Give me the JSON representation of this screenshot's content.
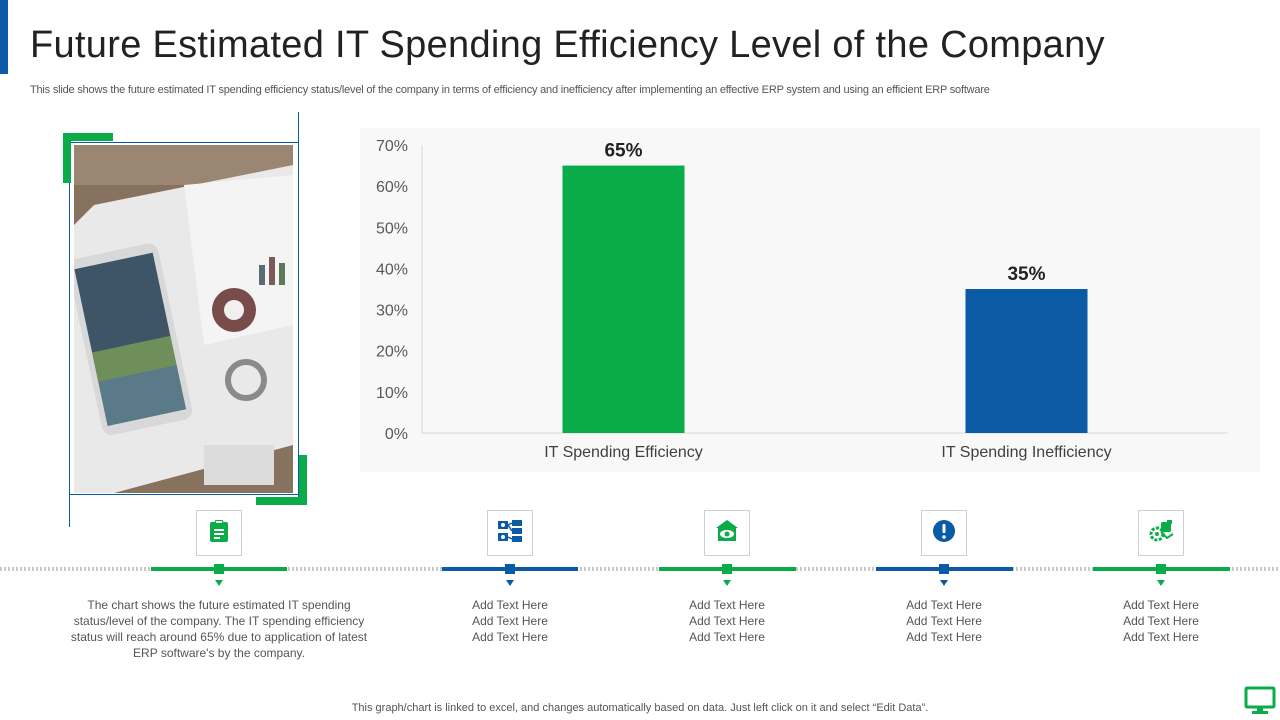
{
  "header": {
    "title": "Future Estimated IT Spending Efficiency Level of the Company",
    "subtitle": "This slide shows the future estimated IT spending efficiency status/level of the company in terms of efficiency and inefficiency after implementing an effective ERP system and using an efficient ERP software"
  },
  "colors": {
    "green": "#0aac4a",
    "blue": "#0a5aa5"
  },
  "chart_data": {
    "type": "bar",
    "categories": [
      "IT Spending Efficiency",
      "IT Spending Inefficiency"
    ],
    "values": [
      65,
      35
    ],
    "data_labels": [
      "65%",
      "35%"
    ],
    "bar_colors": [
      "#0aac4a",
      "#0a5aa5"
    ],
    "yticks": [
      0,
      10,
      20,
      30,
      40,
      50,
      60,
      70
    ],
    "ytick_labels": [
      "0%",
      "10%",
      "20%",
      "30%",
      "40%",
      "50%",
      "60%",
      "70%"
    ],
    "ylim": [
      0,
      70
    ],
    "title": "",
    "xlabel": "",
    "ylabel": "",
    "grid": false
  },
  "timeline": {
    "steps": [
      {
        "icon": "clipboard-icon",
        "color": "green",
        "lines": [
          "The chart shows the future estimated IT spending",
          "status/level of the company. The IT spending efficiency",
          "status will reach around 65% due to application of latest",
          "ERP software's by the company."
        ]
      },
      {
        "icon": "network-diagram-icon",
        "color": "blue",
        "lines": [
          "Add Text Here",
          "Add Text Here",
          "Add Text Here"
        ]
      },
      {
        "icon": "house-eye-icon",
        "color": "green",
        "lines": [
          "Add Text Here",
          "Add Text Here",
          "Add Text Here"
        ]
      },
      {
        "icon": "alert-icon",
        "color": "blue",
        "lines": [
          "Add Text Here",
          "Add Text Here",
          "Add Text Here"
        ]
      },
      {
        "icon": "gear-hand-icon",
        "color": "green",
        "lines": [
          "Add Text Here",
          "Add Text Here",
          "Add Text Here"
        ]
      }
    ]
  },
  "footer": {
    "note": "This graph/chart is linked to excel, and changes automatically based on data. Just left click on it and select “Edit Data”."
  }
}
